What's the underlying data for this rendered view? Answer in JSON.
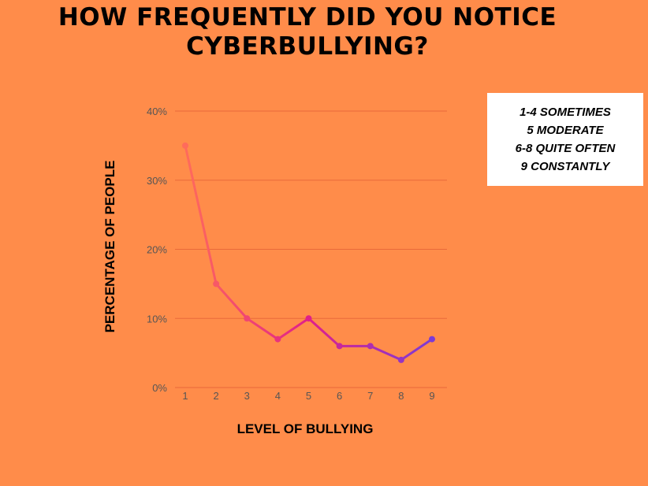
{
  "chart_data": {
    "type": "line",
    "title": "HOW FREQUENTLY DID YOU NOTICE CYBERBULLYING?",
    "title_lines": [
      "HOW FREQUENTLY DID YOU NOTICE",
      "CYBERBULLYING?"
    ],
    "xlabel": "LEVEL OF BULLYING",
    "ylabel": "PERCENTAGE OF PEOPLE",
    "x": [
      1,
      2,
      3,
      4,
      5,
      6,
      7,
      8,
      9
    ],
    "x_tick_labels": [
      "1",
      "2",
      "3",
      "4",
      "5",
      "6",
      "7",
      "8",
      "9"
    ],
    "values": [
      35,
      15,
      10,
      7,
      10,
      6,
      6,
      4,
      7
    ],
    "ylim": [
      0,
      40
    ],
    "y_ticks": [
      0,
      10,
      20,
      30,
      40
    ],
    "y_tick_labels": [
      "0%",
      "10%",
      "20%",
      "30%",
      "40%"
    ],
    "grid": true,
    "line_gradient": [
      "#ff6b5b",
      "#e0208a",
      "#7c3ad6"
    ],
    "gridline_color": "#e9693a",
    "legend_lines": [
      "1-4 SOMETIMES",
      "5 MODERATE",
      "6-8 QUITE OFTEN",
      "9 CONSTANTLY"
    ]
  }
}
